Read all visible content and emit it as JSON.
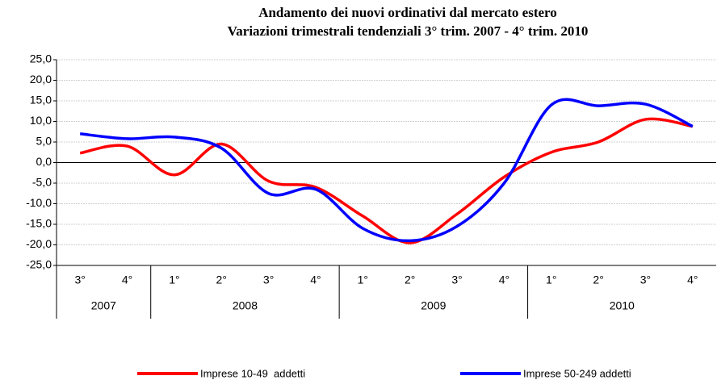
{
  "chart_data": {
    "type": "line",
    "title": [
      "Andamento dei nuovi ordinativi dal mercato estero",
      "Variazioni trimestrali tendenziali 3° trim. 2007 - 4° trim. 2010"
    ],
    "categories": [
      "3°",
      "4°",
      "1°",
      "2°",
      "3°",
      "4°",
      "1°",
      "2°",
      "3°",
      "4°",
      "1°",
      "2°",
      "3°",
      "4°"
    ],
    "groups": [
      {
        "label": "2007",
        "count": 2
      },
      {
        "label": "2008",
        "count": 4
      },
      {
        "label": "2009",
        "count": 4
      },
      {
        "label": "2010",
        "count": 4
      }
    ],
    "series": [
      {
        "name": "Imprese 10-49  addetti",
        "color": "#ff0000",
        "values": [
          2.3,
          4.0,
          -3.0,
          4.5,
          -4.5,
          -6.0,
          -13.0,
          -19.5,
          -12.5,
          -3.5,
          2.5,
          5.0,
          10.5,
          8.8
        ]
      },
      {
        "name": "Imprese 50-249 addetti",
        "color": "#0000ff",
        "values": [
          7.0,
          5.8,
          6.2,
          3.5,
          -7.5,
          -6.5,
          -16.0,
          -19.0,
          -15.5,
          -5.0,
          14.0,
          13.8,
          14.2,
          8.8
        ]
      }
    ],
    "ylim": [
      -25,
      25
    ],
    "yticks": [
      {
        "value": -25,
        "label": "-25,0"
      },
      {
        "value": -20,
        "label": "-20,0"
      },
      {
        "value": -15,
        "label": "-15,0"
      },
      {
        "value": -10,
        "label": "-10,0"
      },
      {
        "value": -5,
        "label": "-5,0"
      },
      {
        "value": 0,
        "label": "0,0"
      },
      {
        "value": 5,
        "label": "5,0"
      },
      {
        "value": 10,
        "label": "10,0"
      },
      {
        "value": 15,
        "label": "15,0"
      },
      {
        "value": 20,
        "label": "20,0"
      },
      {
        "value": 25,
        "label": "25,0"
      }
    ],
    "grid": true,
    "smooth": true,
    "legend": "bottom"
  }
}
